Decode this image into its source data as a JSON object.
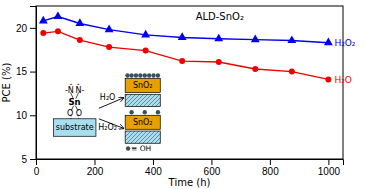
{
  "chart_data": {
    "type": "line",
    "title": "ALD-SnO₂",
    "xlabel": "Time (h)",
    "ylabel": "PCE (%)",
    "x": [
      25,
      75,
      150,
      250,
      375,
      500,
      625,
      750,
      875,
      1000
    ],
    "series": [
      {
        "name": "H₂O₂",
        "color": "#0000ee",
        "marker": "triangle",
        "values": [
          20.8,
          21.3,
          20.5,
          19.8,
          19.2,
          18.9,
          18.75,
          18.65,
          18.55,
          18.3
        ]
      },
      {
        "name": "H₂O",
        "color": "#ee0000",
        "marker": "circle",
        "values": [
          19.4,
          19.6,
          18.6,
          17.8,
          17.4,
          16.2,
          16.1,
          15.3,
          15.0,
          14.1
        ]
      }
    ],
    "xlim": [
      0,
      1050
    ],
    "ylim": [
      5,
      22.5
    ],
    "xticks": [
      0,
      200,
      400,
      600,
      800,
      1000
    ],
    "yticks": [
      5,
      10,
      15,
      20
    ],
    "grid": false,
    "annotations": [
      "substrate",
      "Sn",
      "-N",
      "⁺",
      "N-",
      "⁺",
      "O",
      "O",
      "H₂O",
      "H₂O₂",
      "SnO₂",
      "SnO₂",
      "≡ OH"
    ]
  }
}
